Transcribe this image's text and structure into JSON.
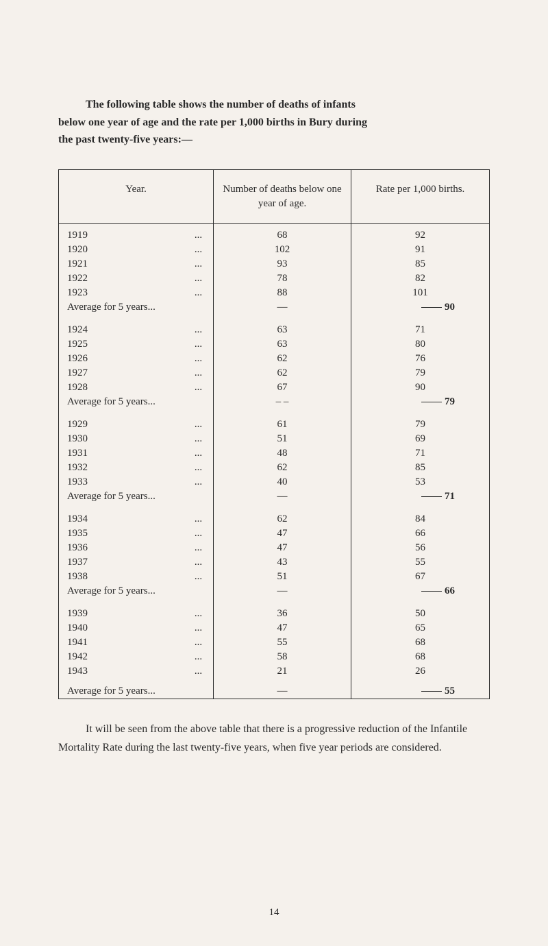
{
  "intro": {
    "line1_part1": "The following table shows the number of deaths of infants",
    "line2": "below one year of age and the rate per 1,000 births in Bury during",
    "line3": "the past twenty-five years:—"
  },
  "table": {
    "headers": {
      "year": "Year.",
      "deaths": "Number of deaths below one year of age.",
      "rate": "Rate per 1,000 births."
    },
    "groups": [
      {
        "rows": [
          {
            "year": "1919",
            "deaths": "68",
            "rate": "92"
          },
          {
            "year": "1920",
            "deaths": "102",
            "rate": "91"
          },
          {
            "year": "1921",
            "deaths": "93",
            "rate": "85"
          },
          {
            "year": "1922",
            "deaths": "78",
            "rate": "82"
          },
          {
            "year": "1923",
            "deaths": "88",
            "rate": "101"
          }
        ],
        "avg_label": "Average for 5 years...",
        "avg_deaths": "—",
        "avg_rate": "90"
      },
      {
        "rows": [
          {
            "year": "1924",
            "deaths": "63",
            "rate": "71"
          },
          {
            "year": "1925",
            "deaths": "63",
            "rate": "80"
          },
          {
            "year": "1926",
            "deaths": "62",
            "rate": "76"
          },
          {
            "year": "1927",
            "deaths": "62",
            "rate": "79"
          },
          {
            "year": "1928",
            "deaths": "67",
            "rate": "90"
          }
        ],
        "avg_label": "Average for 5 years...",
        "avg_deaths": "– –",
        "avg_rate": "79"
      },
      {
        "rows": [
          {
            "year": "1929",
            "deaths": "61",
            "rate": "79"
          },
          {
            "year": "1930",
            "deaths": "51",
            "rate": "69"
          },
          {
            "year": "1931",
            "deaths": "48",
            "rate": "71"
          },
          {
            "year": "1932",
            "deaths": "62",
            "rate": "85"
          },
          {
            "year": "1933",
            "deaths": "40",
            "rate": "53"
          }
        ],
        "avg_label": "Average for 5 years...",
        "avg_deaths": "—",
        "avg_rate": "71"
      },
      {
        "rows": [
          {
            "year": "1934",
            "deaths": "62",
            "rate": "84"
          },
          {
            "year": "1935",
            "deaths": "47",
            "rate": "66"
          },
          {
            "year": "1936",
            "deaths": "47",
            "rate": "56"
          },
          {
            "year": "1937",
            "deaths": "43",
            "rate": "55"
          },
          {
            "year": "1938",
            "deaths": "51",
            "rate": "67"
          }
        ],
        "avg_label": "Average for 5 years...",
        "avg_deaths": "—",
        "avg_rate": "66"
      },
      {
        "rows": [
          {
            "year": "1939",
            "deaths": "36",
            "rate": "50"
          },
          {
            "year": "1940",
            "deaths": "47",
            "rate": "65"
          },
          {
            "year": "1941",
            "deaths": "55",
            "rate": "68"
          },
          {
            "year": "1942",
            "deaths": "58",
            "rate": "68"
          },
          {
            "year": "1943",
            "deaths": "21",
            "rate": "26"
          }
        ],
        "avg_label": "Average for 5 years...",
        "avg_deaths": "—",
        "avg_rate": "55"
      }
    ]
  },
  "conclusion": "It will be seen from the above table that there is a progressive reduction of the Infantile Mortality Rate during the last twenty-five years, when five year periods are considered.",
  "page_number": "14"
}
